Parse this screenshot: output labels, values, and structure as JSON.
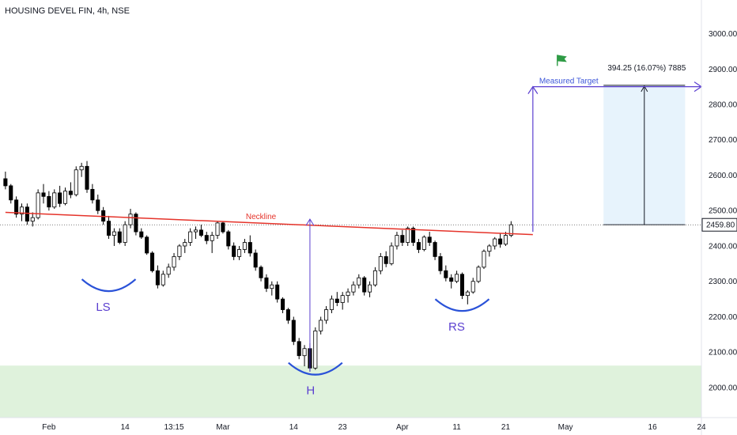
{
  "chart_data": {
    "type": "candlestick",
    "title": "HOUSING DEVEL FIN, 4h, NSE",
    "ylim": [
      1915,
      3095
    ],
    "yticks": [
      2000,
      2100,
      2200,
      2300,
      2400,
      2500,
      2600,
      2700,
      2800,
      2900,
      3000
    ],
    "ytick_labels": [
      "2000.00",
      "2100.00",
      "2200.00",
      "2300.00",
      "2400.00",
      "2500.00",
      "2600.00",
      "2700.00",
      "2800.00",
      "2900.00",
      "3000.00"
    ],
    "x_range": [
      -1,
      128
    ],
    "xticks": [
      {
        "x": 8,
        "label": "Feb"
      },
      {
        "x": 22,
        "label": "14"
      },
      {
        "x": 31,
        "label": "13:15"
      },
      {
        "x": 40,
        "label": "Mar"
      },
      {
        "x": 53,
        "label": "14"
      },
      {
        "x": 62,
        "label": "23"
      },
      {
        "x": 73,
        "label": "Apr"
      },
      {
        "x": 83,
        "label": "11"
      },
      {
        "x": 92,
        "label": "21"
      },
      {
        "x": 103,
        "label": "May"
      },
      {
        "x": 119,
        "label": "16"
      },
      {
        "x": 128,
        "label": "24"
      }
    ],
    "last_price": 2459.8,
    "last_price_label": "2459.80",
    "candles": [
      [
        2590,
        2610,
        2560,
        2570
      ],
      [
        2570,
        2575,
        2520,
        2530
      ],
      [
        2530,
        2540,
        2480,
        2490
      ],
      [
        2490,
        2520,
        2470,
        2510
      ],
      [
        2510,
        2520,
        2460,
        2470
      ],
      [
        2470,
        2495,
        2455,
        2480
      ],
      [
        2480,
        2560,
        2475,
        2550
      ],
      [
        2550,
        2575,
        2520,
        2540
      ],
      [
        2540,
        2555,
        2500,
        2510
      ],
      [
        2510,
        2560,
        2505,
        2550
      ],
      [
        2550,
        2570,
        2510,
        2520
      ],
      [
        2520,
        2565,
        2515,
        2555
      ],
      [
        2555,
        2580,
        2535,
        2545
      ],
      [
        2545,
        2625,
        2540,
        2615
      ],
      [
        2615,
        2635,
        2595,
        2625
      ],
      [
        2625,
        2640,
        2550,
        2560
      ],
      [
        2560,
        2575,
        2520,
        2530
      ],
      [
        2530,
        2545,
        2490,
        2500
      ],
      [
        2500,
        2510,
        2460,
        2470
      ],
      [
        2470,
        2485,
        2420,
        2430
      ],
      [
        2430,
        2450,
        2400,
        2440
      ],
      [
        2440,
        2450,
        2405,
        2410
      ],
      [
        2410,
        2470,
        2400,
        2460
      ],
      [
        2460,
        2505,
        2450,
        2490
      ],
      [
        2490,
        2495,
        2430,
        2440
      ],
      [
        2440,
        2450,
        2420,
        2425
      ],
      [
        2425,
        2430,
        2375,
        2380
      ],
      [
        2380,
        2385,
        2325,
        2330
      ],
      [
        2330,
        2345,
        2280,
        2290
      ],
      [
        2290,
        2330,
        2285,
        2320
      ],
      [
        2320,
        2350,
        2310,
        2340
      ],
      [
        2340,
        2380,
        2330,
        2370
      ],
      [
        2370,
        2405,
        2360,
        2400
      ],
      [
        2400,
        2420,
        2380,
        2410
      ],
      [
        2410,
        2450,
        2400,
        2440
      ],
      [
        2440,
        2455,
        2420,
        2445
      ],
      [
        2445,
        2460,
        2425,
        2430
      ],
      [
        2430,
        2440,
        2405,
        2415
      ],
      [
        2415,
        2440,
        2380,
        2430
      ],
      [
        2430,
        2470,
        2420,
        2465
      ],
      [
        2465,
        2470,
        2435,
        2440
      ],
      [
        2440,
        2445,
        2390,
        2400
      ],
      [
        2400,
        2410,
        2360,
        2370
      ],
      [
        2370,
        2400,
        2360,
        2390
      ],
      [
        2390,
        2420,
        2380,
        2410
      ],
      [
        2410,
        2430,
        2370,
        2380
      ],
      [
        2380,
        2390,
        2330,
        2340
      ],
      [
        2340,
        2345,
        2300,
        2310
      ],
      [
        2310,
        2320,
        2270,
        2280
      ],
      [
        2280,
        2300,
        2260,
        2290
      ],
      [
        2290,
        2300,
        2240,
        2250
      ],
      [
        2250,
        2255,
        2210,
        2220
      ],
      [
        2220,
        2225,
        2180,
        2190
      ],
      [
        2190,
        2200,
        2120,
        2130
      ],
      [
        2130,
        2140,
        2080,
        2090
      ],
      [
        2090,
        2120,
        2060,
        2110
      ],
      [
        2110,
        2125,
        2045,
        2055
      ],
      [
        2055,
        2170,
        2050,
        2160
      ],
      [
        2160,
        2200,
        2150,
        2190
      ],
      [
        2190,
        2230,
        2180,
        2220
      ],
      [
        2220,
        2260,
        2210,
        2250
      ],
      [
        2250,
        2270,
        2230,
        2240
      ],
      [
        2240,
        2270,
        2220,
        2260
      ],
      [
        2260,
        2280,
        2240,
        2270
      ],
      [
        2270,
        2300,
        2260,
        2290
      ],
      [
        2290,
        2320,
        2280,
        2310
      ],
      [
        2310,
        2315,
        2260,
        2270
      ],
      [
        2270,
        2300,
        2255,
        2290
      ],
      [
        2290,
        2340,
        2285,
        2330
      ],
      [
        2330,
        2380,
        2320,
        2370
      ],
      [
        2370,
        2385,
        2340,
        2350
      ],
      [
        2350,
        2410,
        2345,
        2400
      ],
      [
        2400,
        2440,
        2390,
        2430
      ],
      [
        2430,
        2445,
        2400,
        2410
      ],
      [
        2410,
        2455,
        2400,
        2450
      ],
      [
        2450,
        2455,
        2400,
        2410
      ],
      [
        2410,
        2420,
        2380,
        2390
      ],
      [
        2390,
        2430,
        2385,
        2425
      ],
      [
        2425,
        2440,
        2400,
        2410
      ],
      [
        2410,
        2415,
        2360,
        2370
      ],
      [
        2370,
        2380,
        2320,
        2330
      ],
      [
        2330,
        2345,
        2300,
        2310
      ],
      [
        2310,
        2320,
        2280,
        2300
      ],
      [
        2300,
        2330,
        2295,
        2320
      ],
      [
        2320,
        2325,
        2250,
        2260
      ],
      [
        2260,
        2275,
        2235,
        2270
      ],
      [
        2270,
        2310,
        2265,
        2300
      ],
      [
        2300,
        2345,
        2295,
        2340
      ],
      [
        2340,
        2390,
        2335,
        2385
      ],
      [
        2385,
        2405,
        2370,
        2400
      ],
      [
        2400,
        2425,
        2390,
        2420
      ],
      [
        2420,
        2435,
        2395,
        2405
      ],
      [
        2405,
        2440,
        2400,
        2430
      ],
      [
        2430,
        2470,
        2425,
        2460
      ]
    ],
    "neckline": {
      "label": "Neckline",
      "from": [
        0,
        2495
      ],
      "to": [
        97,
        2432
      ]
    },
    "patterns": [
      {
        "label": "LS",
        "x": 19,
        "y": 2288
      },
      {
        "label": "H",
        "x": 57,
        "y": 2052
      },
      {
        "label": "RS",
        "x": 84,
        "y": 2232
      }
    ],
    "measured_move": {
      "from_x": 56,
      "from_low": 2045,
      "to_high": 2478
    },
    "target_arrow": {
      "label": "Measured Target",
      "x": 97,
      "from_y": 2440,
      "to_y": 2850,
      "end_x": 128
    },
    "target_box": {
      "x0": 110,
      "x1": 125,
      "y0": 2460,
      "y1": 2854,
      "stat_label": "394.25 (16.07%) 7885"
    },
    "zone": {
      "y0": 1915,
      "y1": 2062
    },
    "colors": {
      "up": "#ffffff",
      "down": "#000000",
      "wick": "#000000",
      "neckline": "#e5332a",
      "arc": "#2a52d8",
      "pattern_text": "#5b3fd0",
      "target": "#5b3fd0",
      "zone": "#dff2dc",
      "box": "#e7f3fc",
      "flag": "#2e9b45"
    }
  }
}
